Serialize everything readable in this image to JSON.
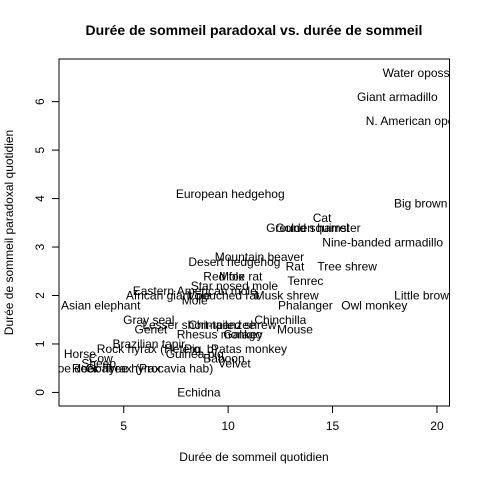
{
  "chart_data": {
    "type": "scatter",
    "title": "Durée de sommeil paradoxal vs. durée de sommeil",
    "xlabel": "Durée de sommeil quotidien",
    "ylabel": "Durée de sommeil paradoxal quotidien",
    "xlim": [
      1.9,
      20.6
    ],
    "ylim": [
      -0.28,
      6.88
    ],
    "x_ticks": [
      5,
      10,
      15,
      20
    ],
    "y_ticks": [
      0,
      1,
      2,
      3,
      4,
      5,
      6
    ],
    "grid": false,
    "legend": "none",
    "points": [
      {
        "label": "Water opossum",
        "x": 19.4,
        "y": 6.6
      },
      {
        "label": "Giant armadillo",
        "x": 18.1,
        "y": 6.1
      },
      {
        "label": "N. American opossum",
        "x": 19.4,
        "y": 5.6
      },
      {
        "label": "European hedgehog",
        "x": 10.1,
        "y": 4.1
      },
      {
        "label": "Big brown bat",
        "x": 19.7,
        "y": 3.9
      },
      {
        "label": "Cat",
        "x": 14.5,
        "y": 3.6
      },
      {
        "label": "Ground squirrel",
        "x": 13.8,
        "y": 3.4
      },
      {
        "label": "Golden hamster",
        "x": 14.3,
        "y": 3.4
      },
      {
        "label": "Nine-banded armadillo",
        "x": 17.4,
        "y": 3.1
      },
      {
        "label": "Mountain beaver",
        "x": 11.5,
        "y": 2.8
      },
      {
        "label": "Desert hedgehog",
        "x": 10.3,
        "y": 2.7
      },
      {
        "label": "Rat",
        "x": 13.2,
        "y": 2.6
      },
      {
        "label": "Tree shrew",
        "x": 15.7,
        "y": 2.6
      },
      {
        "label": "Mole rat",
        "x": 10.6,
        "y": 2.4
      },
      {
        "label": "Red fox",
        "x": 9.8,
        "y": 2.4
      },
      {
        "label": "Tenrec",
        "x": 13.7,
        "y": 2.3
      },
      {
        "label": "Star nosed mole",
        "x": 10.3,
        "y": 2.2
      },
      {
        "label": "Eastern American mole",
        "x": 8.4,
        "y": 2.1
      },
      {
        "label": "Musk shrew",
        "x": 12.8,
        "y": 2.0
      },
      {
        "label": "African giant pouched rat",
        "x": 8.3,
        "y": 2.0
      },
      {
        "label": "Little brown bat",
        "x": 19.9,
        "y": 2.0
      },
      {
        "label": "Vole",
        "x": 8.6,
        "y": 2.0
      },
      {
        "label": "Mole",
        "x": 8.4,
        "y": 1.9
      },
      {
        "label": "Asian elephant",
        "x": 3.9,
        "y": 1.8
      },
      {
        "label": "Phalanger",
        "x": 13.7,
        "y": 1.8
      },
      {
        "label": "Owl monkey",
        "x": 17.0,
        "y": 1.8
      },
      {
        "label": "Gray seal",
        "x": 6.2,
        "y": 1.5
      },
      {
        "label": "Chinchilla",
        "x": 12.5,
        "y": 1.5
      },
      {
        "label": "Chimpanzee",
        "x": 9.7,
        "y": 1.4
      },
      {
        "label": "Lesser short-tailed shrew",
        "x": 9.1,
        "y": 1.4
      },
      {
        "label": "Genet",
        "x": 6.3,
        "y": 1.3
      },
      {
        "label": "Mouse",
        "x": 13.2,
        "y": 1.3
      },
      {
        "label": "Rhesus monkey",
        "x": 9.6,
        "y": 1.2
      },
      {
        "label": "Galago",
        "x": 10.7,
        "y": 1.2
      },
      {
        "label": "Brazilian tapir",
        "x": 6.2,
        "y": 1.0
      },
      {
        "label": "Rock hyrax (Hetero. b)",
        "x": 6.6,
        "y": 0.9
      },
      {
        "label": "Patas monkey",
        "x": 11.0,
        "y": 0.9
      },
      {
        "label": "Pig",
        "x": 8.3,
        "y": 0.9
      },
      {
        "label": "Guinea pig",
        "x": 8.4,
        "y": 0.8
      },
      {
        "label": "Horse",
        "x": 2.9,
        "y": 0.8
      },
      {
        "label": "Cow",
        "x": 3.9,
        "y": 0.7
      },
      {
        "label": "Baboon",
        "x": 9.8,
        "y": 0.7
      },
      {
        "label": "Sheep",
        "x": 3.8,
        "y": 0.6
      },
      {
        "label": "Velvet",
        "x": 10.3,
        "y": 0.6
      },
      {
        "label": "Rock hyrax (Procavia hab)",
        "x": 5.9,
        "y": 0.5
      },
      {
        "label": "Roe deer",
        "x": 2.6,
        "y": 0.5
      },
      {
        "label": "Tree hyrax",
        "x": 5.4,
        "y": 0.5
      },
      {
        "label": "Goat",
        "x": 3.8,
        "y": 0.5
      },
      {
        "label": "Echidna",
        "x": 8.6,
        "y": 0.0
      }
    ]
  }
}
